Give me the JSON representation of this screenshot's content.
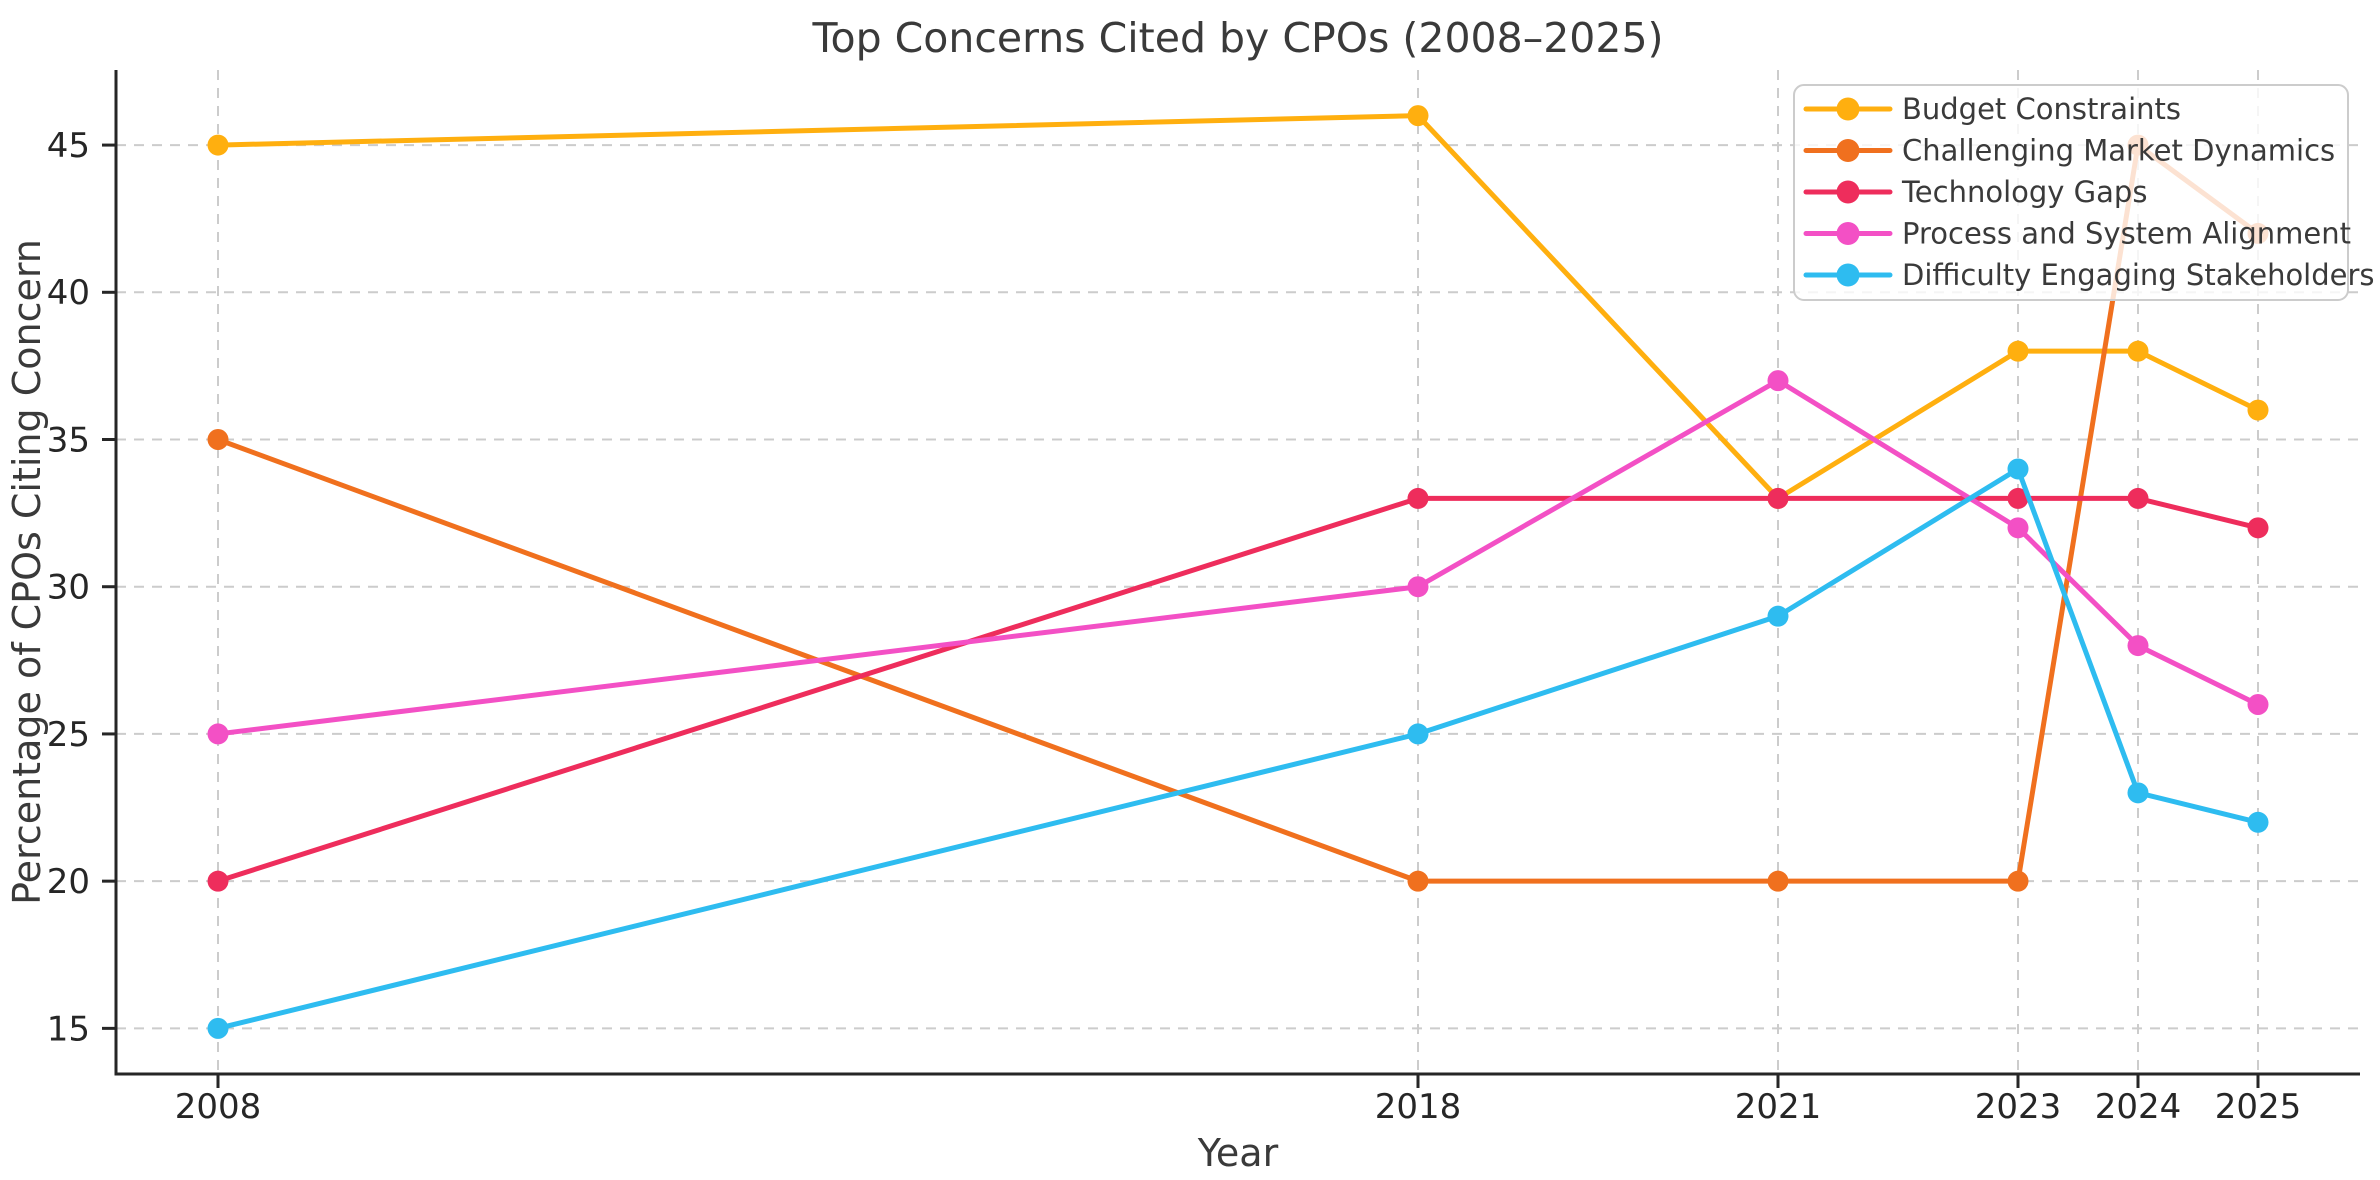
{
  "chart_data": {
    "type": "line",
    "title": "Top Concerns Cited by CPOs (2008–2025)",
    "xlabel": "Year",
    "ylabel": "Percentage of CPOs Citing Concern",
    "x": [
      2008,
      2018,
      2021,
      2023,
      2024,
      2025
    ],
    "x_tick_labels": [
      "2008",
      "2018",
      "2021",
      "2023",
      "2024",
      "2025"
    ],
    "y_ticks": [
      15,
      20,
      25,
      30,
      35,
      40,
      45
    ],
    "y_tick_labels": [
      "15",
      "20",
      "25",
      "30",
      "35",
      "40",
      "45"
    ],
    "xlim": [
      2007.15,
      2025.85
    ],
    "ylim": [
      13.45,
      47.55
    ],
    "grid": true,
    "grid_style": "dashed",
    "legend_position": "upper right",
    "series": [
      {
        "name": "Budget Constraints",
        "color": "#ffaf0f",
        "values": [
          45,
          46,
          33,
          38,
          38,
          36
        ]
      },
      {
        "name": "Challenging Market Dynamics",
        "color": "#f0701e",
        "values": [
          35,
          20,
          20,
          20,
          45,
          42
        ]
      },
      {
        "name": "Technology Gaps",
        "color": "#ee2d5c",
        "values": [
          20,
          33,
          33,
          33,
          33,
          32
        ]
      },
      {
        "name": "Process and System Alignment",
        "color": "#f350c5",
        "values": [
          25,
          30,
          37,
          32,
          28,
          26
        ]
      },
      {
        "name": "Difficulty Engaging Stakeholders",
        "color": "#2ebcf0",
        "values": [
          15,
          25,
          29,
          34,
          23,
          22
        ]
      }
    ],
    "style_colors": {
      "background": "#ffffff",
      "grid": "#cccccc",
      "spine": "#262626",
      "tick_label": "#262626",
      "text": "#3a3a3a",
      "legend_border": "#cccccc",
      "legend_background": "rgba(255,255,255,0.8)"
    }
  }
}
